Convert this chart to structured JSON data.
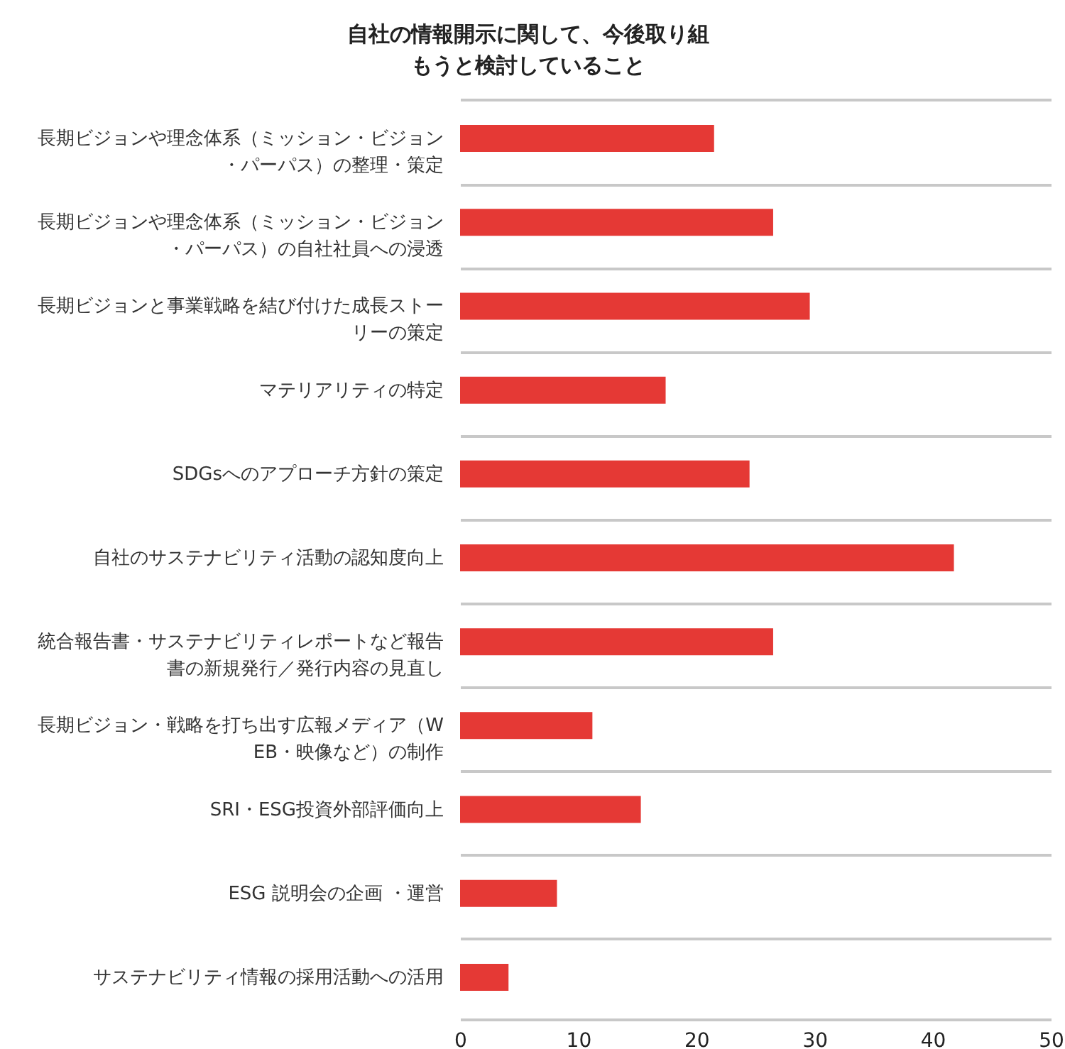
{
  "chart_data": {
    "type": "bar",
    "orientation": "horizontal",
    "title": "自社の情報開示に関して、今後取り組もうと検討していること",
    "categories": [
      "長期ビジョンや理念体系（ミッション・ビジョン・パーパス）の整理・策定",
      "長期ビジョンや理念体系（ミッション・ビジョン・パーパス）の自社社員への浸透",
      "長期ビジョンと事業戦略を結び付けた成長ストーリーの策定",
      "マテリアリティの特定",
      "SDGsへのアプローチ方針の策定",
      "自社のサステナビリティ活動の認知度向上",
      "統合報告書・サステナビリティレポートなど報告書の新規発行／発行内容の見直し",
      "長期ビジョン・戦略を打ち出す広報メディア（WEB・映像など）の制作",
      "SRI・ESG投資外部評価向上",
      "ESG 説明会の企画 ・運営",
      "サステナビリティ情報の採用活動への活用"
    ],
    "values": [
      21.5,
      26.5,
      29.6,
      17.4,
      24.5,
      41.8,
      26.5,
      11.2,
      15.3,
      8.2,
      4.1
    ],
    "color": "#e53935",
    "xlim": [
      0,
      50
    ],
    "xticks": [
      0,
      10,
      20,
      30,
      40,
      50
    ],
    "grid": "y"
  }
}
